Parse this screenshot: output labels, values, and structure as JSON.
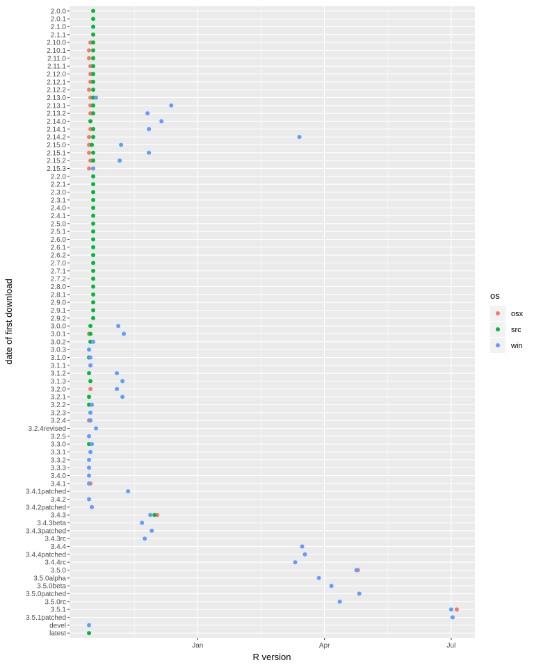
{
  "chart_data": {
    "type": "scatter",
    "title": "",
    "xlabel": "R version",
    "ylabel": "date of first download",
    "x_ticks": [
      "Jan",
      "Apr",
      "Jul"
    ],
    "x_tick_dates": [
      "2012-01-01",
      "2012-04-01",
      "2012-07-01"
    ],
    "xlim": [
      "2011-10-01",
      "2012-07-18"
    ],
    "grid": true,
    "legend": {
      "title": "os",
      "position": "right",
      "entries": [
        {
          "name": "osx",
          "color": "#F8766D"
        },
        {
          "name": "src",
          "color": "#00BA38"
        },
        {
          "name": "win",
          "color": "#619CFF"
        }
      ]
    },
    "categories": [
      "2.0.0",
      "2.0.1",
      "2.1.0",
      "2.1.1",
      "2.10.0",
      "2.10.1",
      "2.11.0",
      "2.11.1",
      "2.12.0",
      "2.12.1",
      "2.12.2",
      "2.13.0",
      "2.13.1",
      "2.13.2",
      "2.14.0",
      "2.14.1",
      "2.14.2",
      "2.15.0",
      "2.15.1",
      "2.15.2",
      "2.15.3",
      "2.2.0",
      "2.2.1",
      "2.3.0",
      "2.3.1",
      "2.4.0",
      "2.4.1",
      "2.5.0",
      "2.5.1",
      "2.6.0",
      "2.6.1",
      "2.6.2",
      "2.7.0",
      "2.7.1",
      "2.7.2",
      "2.8.0",
      "2.8.1",
      "2.9.0",
      "2.9.1",
      "2.9.2",
      "3.0.0",
      "3.0.1",
      "3.0.2",
      "3.0.3",
      "3.1.0",
      "3.1.1",
      "3.1.2",
      "3.1.3",
      "3.2.0",
      "3.2.1",
      "3.2.2",
      "3.2.3",
      "3.2.4",
      "3.2.4revised",
      "3.2.5",
      "3.3.0",
      "3.3.1",
      "3.3.2",
      "3.3.3",
      "3.4.0",
      "3.4.1",
      "3.4.1patched",
      "3.4.2",
      "3.4.2patched",
      "3.4.3",
      "3.4.3beta",
      "3.4.3patched",
      "3.4.3rc",
      "3.4.4",
      "3.4.4patched",
      "3.4.4rc",
      "3.5.0",
      "3.5.0alpha",
      "3.5.0beta",
      "3.5.0patched",
      "3.5.0rc",
      "3.5.1",
      "3.5.1patched",
      "devel",
      "latest"
    ],
    "series": [
      {
        "name": "osx",
        "color": "#F8766D",
        "points": [
          {
            "x": "2011-10-16",
            "y": "2.10.0"
          },
          {
            "x": "2011-10-15",
            "y": "2.10.1"
          },
          {
            "x": "2011-10-15",
            "y": "2.11.0"
          },
          {
            "x": "2011-10-16",
            "y": "2.11.1"
          },
          {
            "x": "2011-10-16",
            "y": "2.12.0"
          },
          {
            "x": "2011-10-16",
            "y": "2.12.1"
          },
          {
            "x": "2011-10-15",
            "y": "2.12.2"
          },
          {
            "x": "2011-10-16",
            "y": "2.13.0"
          },
          {
            "x": "2011-10-16",
            "y": "2.13.1"
          },
          {
            "x": "2011-10-16",
            "y": "2.13.2"
          },
          {
            "x": "2011-10-16",
            "y": "2.14.0"
          },
          {
            "x": "2011-10-16",
            "y": "2.14.1"
          },
          {
            "x": "2011-10-15",
            "y": "2.14.2"
          },
          {
            "x": "2011-10-15",
            "y": "2.15.0"
          },
          {
            "x": "2011-10-15",
            "y": "2.15.1"
          },
          {
            "x": "2011-10-16",
            "y": "2.15.2"
          },
          {
            "x": "2011-10-15",
            "y": "2.15.3"
          },
          {
            "x": "2011-10-15",
            "y": "3.0.1"
          },
          {
            "x": "2011-10-16",
            "y": "3.2.0"
          },
          {
            "x": "2011-10-15",
            "y": "3.2.4"
          },
          {
            "x": "2011-10-16",
            "y": "3.4.1"
          },
          {
            "x": "2011-12-03",
            "y": "3.4.3"
          },
          {
            "x": "2012-04-25",
            "y": "3.5.0"
          },
          {
            "x": "2012-07-05",
            "y": "3.5.1"
          }
        ]
      },
      {
        "name": "src",
        "color": "#00BA38",
        "points": [
          {
            "x": "2011-10-18",
            "y": "2.0.0"
          },
          {
            "x": "2011-10-18",
            "y": "2.0.1"
          },
          {
            "x": "2011-10-18",
            "y": "2.1.0"
          },
          {
            "x": "2011-10-18",
            "y": "2.1.1"
          },
          {
            "x": "2011-10-18",
            "y": "2.10.0"
          },
          {
            "x": "2011-10-18",
            "y": "2.10.1"
          },
          {
            "x": "2011-10-18",
            "y": "2.11.0"
          },
          {
            "x": "2011-10-18",
            "y": "2.11.1"
          },
          {
            "x": "2011-10-18",
            "y": "2.12.0"
          },
          {
            "x": "2011-10-18",
            "y": "2.12.1"
          },
          {
            "x": "2011-10-18",
            "y": "2.12.2"
          },
          {
            "x": "2011-10-18",
            "y": "2.13.0"
          },
          {
            "x": "2011-10-18",
            "y": "2.13.1"
          },
          {
            "x": "2011-10-18",
            "y": "2.13.2"
          },
          {
            "x": "2011-10-16",
            "y": "2.14.0"
          },
          {
            "x": "2011-10-18",
            "y": "2.14.1"
          },
          {
            "x": "2011-10-18",
            "y": "2.14.2"
          },
          {
            "x": "2011-10-17",
            "y": "2.15.0"
          },
          {
            "x": "2011-10-18",
            "y": "2.15.1"
          },
          {
            "x": "2011-10-18",
            "y": "2.15.2"
          },
          {
            "x": "2011-10-18",
            "y": "2.15.3"
          },
          {
            "x": "2011-10-18",
            "y": "2.2.0"
          },
          {
            "x": "2011-10-18",
            "y": "2.2.1"
          },
          {
            "x": "2011-10-18",
            "y": "2.3.0"
          },
          {
            "x": "2011-10-18",
            "y": "2.3.1"
          },
          {
            "x": "2011-10-18",
            "y": "2.4.0"
          },
          {
            "x": "2011-10-18",
            "y": "2.4.1"
          },
          {
            "x": "2011-10-18",
            "y": "2.5.0"
          },
          {
            "x": "2011-10-18",
            "y": "2.5.1"
          },
          {
            "x": "2011-10-18",
            "y": "2.6.0"
          },
          {
            "x": "2011-10-18",
            "y": "2.6.1"
          },
          {
            "x": "2011-10-18",
            "y": "2.6.2"
          },
          {
            "x": "2011-10-18",
            "y": "2.7.0"
          },
          {
            "x": "2011-10-18",
            "y": "2.7.1"
          },
          {
            "x": "2011-10-18",
            "y": "2.7.2"
          },
          {
            "x": "2011-10-18",
            "y": "2.8.0"
          },
          {
            "x": "2011-10-18",
            "y": "2.8.1"
          },
          {
            "x": "2011-10-18",
            "y": "2.9.0"
          },
          {
            "x": "2011-10-18",
            "y": "2.9.1"
          },
          {
            "x": "2011-10-18",
            "y": "2.9.2"
          },
          {
            "x": "2011-10-16",
            "y": "3.0.0"
          },
          {
            "x": "2011-10-16",
            "y": "3.0.1"
          },
          {
            "x": "2011-10-16",
            "y": "3.0.2"
          },
          {
            "x": "2011-10-15",
            "y": "3.1.0"
          },
          {
            "x": "2011-10-15",
            "y": "3.1.2"
          },
          {
            "x": "2011-10-16",
            "y": "3.1.3"
          },
          {
            "x": "2011-10-15",
            "y": "3.2.1"
          },
          {
            "x": "2011-10-15",
            "y": "3.2.2"
          },
          {
            "x": "2011-10-16",
            "y": "3.2.3"
          },
          {
            "x": "2011-10-16",
            "y": "3.2.4"
          },
          {
            "x": "2011-10-15",
            "y": "3.3.0"
          },
          {
            "x": "2011-12-01",
            "y": "3.4.3"
          },
          {
            "x": "2011-10-15",
            "y": "latest"
          }
        ]
      },
      {
        "name": "win",
        "color": "#619CFF",
        "points": [
          {
            "x": "2011-10-20",
            "y": "2.13.0"
          },
          {
            "x": "2011-12-13",
            "y": "2.13.1"
          },
          {
            "x": "2011-11-26",
            "y": "2.13.2"
          },
          {
            "x": "2011-12-06",
            "y": "2.14.0"
          },
          {
            "x": "2011-11-27",
            "y": "2.14.1"
          },
          {
            "x": "2012-03-14",
            "y": "2.14.2"
          },
          {
            "x": "2011-11-07",
            "y": "2.15.0"
          },
          {
            "x": "2011-11-27",
            "y": "2.15.1"
          },
          {
            "x": "2011-11-06",
            "y": "2.15.2"
          },
          {
            "x": "2011-10-18",
            "y": "2.15.3"
          },
          {
            "x": "2011-11-05",
            "y": "3.0.0"
          },
          {
            "x": "2011-11-09",
            "y": "3.0.1"
          },
          {
            "x": "2011-10-18",
            "y": "3.0.2"
          },
          {
            "x": "2011-10-15",
            "y": "3.0.3"
          },
          {
            "x": "2011-10-16",
            "y": "3.1.0"
          },
          {
            "x": "2011-10-16",
            "y": "3.1.1"
          },
          {
            "x": "2011-11-04",
            "y": "3.1.2"
          },
          {
            "x": "2011-11-08",
            "y": "3.1.3"
          },
          {
            "x": "2011-11-04",
            "y": "3.2.0"
          },
          {
            "x": "2011-11-08",
            "y": "3.2.1"
          },
          {
            "x": "2011-10-17",
            "y": "3.2.2"
          },
          {
            "x": "2011-10-16",
            "y": "3.2.3"
          },
          {
            "x": "2011-10-16",
            "y": "3.2.4"
          },
          {
            "x": "2011-10-20",
            "y": "3.2.4revised"
          },
          {
            "x": "2011-10-15",
            "y": "3.2.5"
          },
          {
            "x": "2011-10-17",
            "y": "3.3.0"
          },
          {
            "x": "2011-10-16",
            "y": "3.3.1"
          },
          {
            "x": "2011-10-15",
            "y": "3.3.2"
          },
          {
            "x": "2011-10-15",
            "y": "3.3.3"
          },
          {
            "x": "2011-10-15",
            "y": "3.4.0"
          },
          {
            "x": "2011-10-15",
            "y": "3.4.1"
          },
          {
            "x": "2011-11-12",
            "y": "3.4.1patched"
          },
          {
            "x": "2011-10-15",
            "y": "3.4.2"
          },
          {
            "x": "2011-10-17",
            "y": "3.4.2patched"
          },
          {
            "x": "2011-11-28",
            "y": "3.4.3"
          },
          {
            "x": "2011-11-22",
            "y": "3.4.3beta"
          },
          {
            "x": "2011-11-29",
            "y": "3.4.3patched"
          },
          {
            "x": "2011-11-24",
            "y": "3.4.3rc"
          },
          {
            "x": "2012-03-16",
            "y": "3.4.4"
          },
          {
            "x": "2012-03-18",
            "y": "3.4.4patched"
          },
          {
            "x": "2012-03-11",
            "y": "3.4.4rc"
          },
          {
            "x": "2012-04-24",
            "y": "3.5.0"
          },
          {
            "x": "2012-03-28",
            "y": "3.5.0alpha"
          },
          {
            "x": "2012-04-06",
            "y": "3.5.0beta"
          },
          {
            "x": "2012-04-26",
            "y": "3.5.0patched"
          },
          {
            "x": "2012-04-12",
            "y": "3.5.0rc"
          },
          {
            "x": "2012-07-01",
            "y": "3.5.1"
          },
          {
            "x": "2012-07-02",
            "y": "3.5.1patched"
          },
          {
            "x": "2011-10-15",
            "y": "devel"
          }
        ]
      }
    ]
  }
}
